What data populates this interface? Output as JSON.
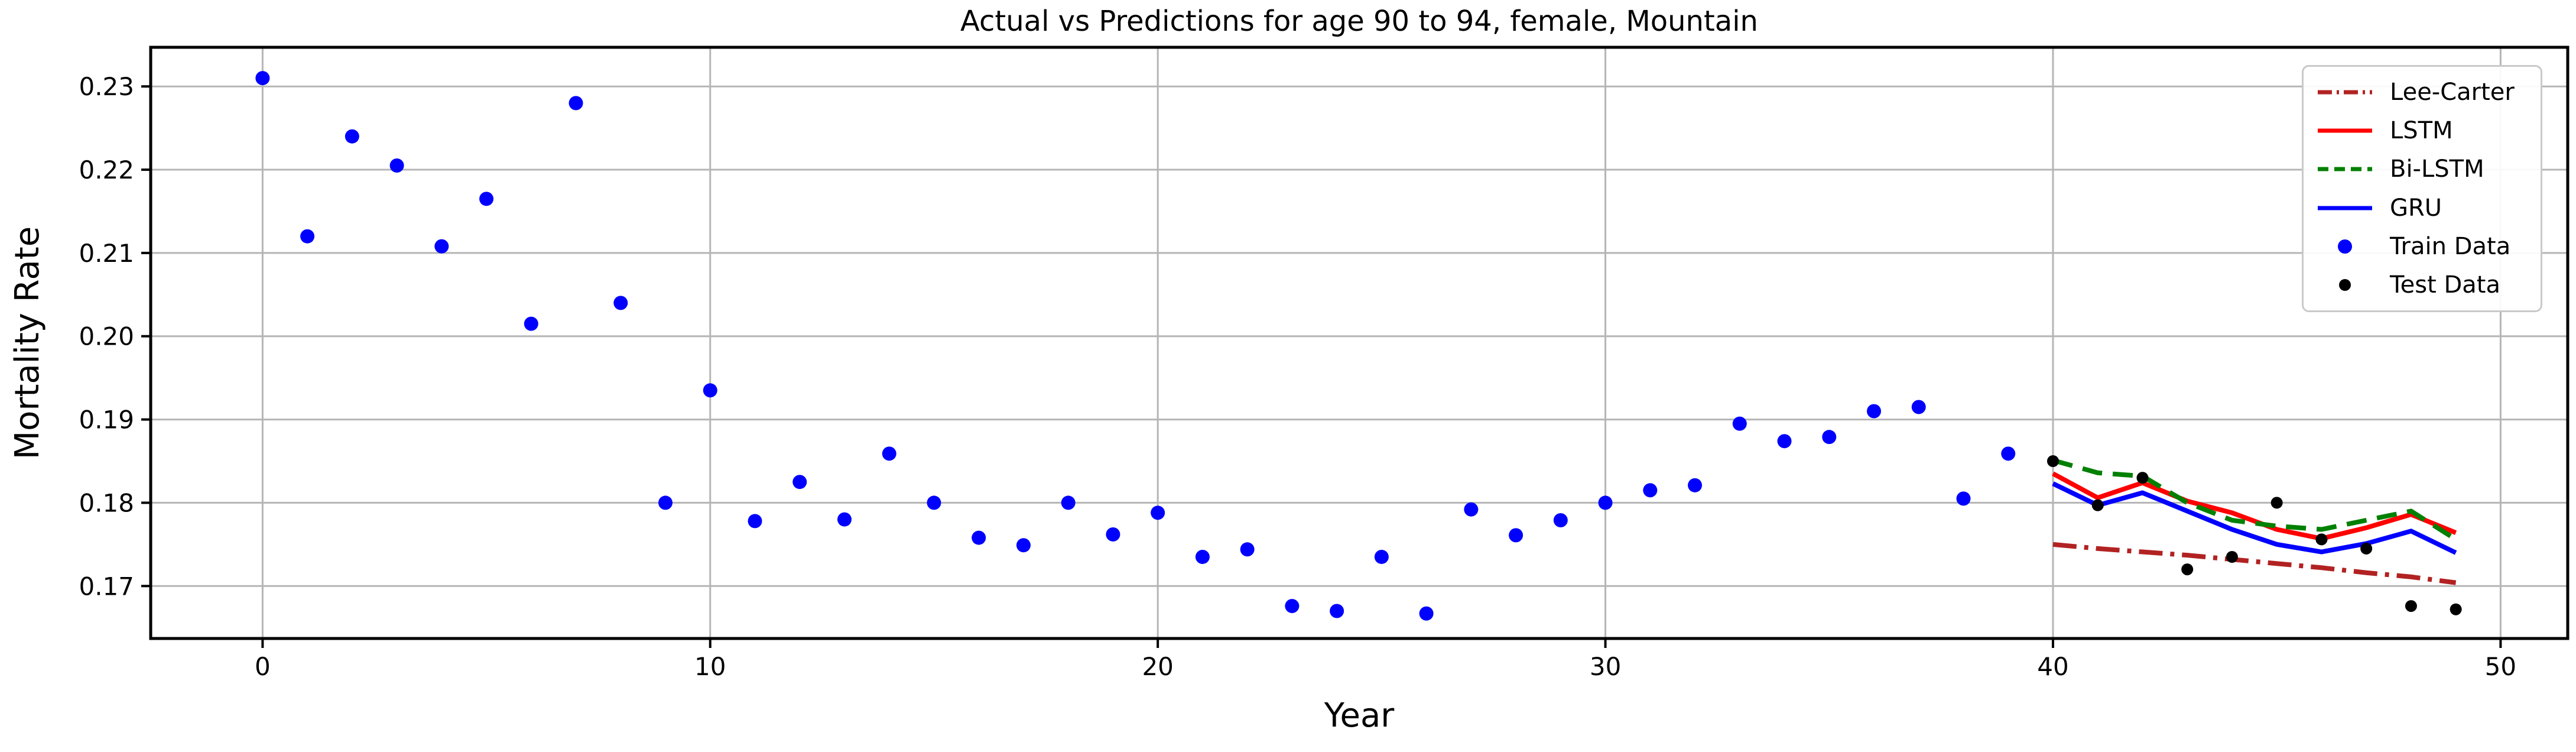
{
  "figure": {
    "background": "#ffffff"
  },
  "chart_data": {
    "type": "scatter",
    "title": "Actual vs Predictions for age 90 to 94, female, Mountain",
    "xlabel": "Year",
    "ylabel": "Mortality Rate",
    "xlim": [
      -2.5,
      51.5
    ],
    "ylim": [
      0.1637,
      0.2347
    ],
    "xtick_labels": [
      "0",
      "10",
      "20",
      "30",
      "40",
      "50"
    ],
    "ytick_labels": [
      "0.17",
      "0.18",
      "0.19",
      "0.20",
      "0.21",
      "0.22",
      "0.23"
    ],
    "grid": true,
    "grid_color": "#b5b5b5",
    "axis_color": "#000000",
    "legend_position": "upper right",
    "series": [
      {
        "name": "Lee-Carter",
        "type": "line",
        "style": "dashdot",
        "color": "#b22222",
        "x": [
          40,
          41,
          42,
          43,
          44,
          45,
          46,
          47,
          48,
          49
        ],
        "y": [
          0.175,
          0.1745,
          0.1741,
          0.1737,
          0.1732,
          0.1727,
          0.1722,
          0.1716,
          0.1711,
          0.1704
        ]
      },
      {
        "name": "LSTM",
        "type": "line",
        "style": "solid",
        "color": "#ff0000",
        "x": [
          40,
          41,
          42,
          43,
          44,
          45,
          46,
          47,
          48,
          49
        ],
        "y": [
          0.1835,
          0.1806,
          0.1824,
          0.1802,
          0.1788,
          0.1768,
          0.1757,
          0.177,
          0.1786,
          0.1764
        ]
      },
      {
        "name": "Bi-LSTM",
        "type": "line",
        "style": "dashed",
        "color": "#008000",
        "x": [
          40,
          41,
          42,
          43,
          44,
          45,
          46,
          47,
          48,
          49
        ],
        "y": [
          0.1851,
          0.1836,
          0.1832,
          0.18,
          0.1779,
          0.1772,
          0.1768,
          0.1779,
          0.179,
          0.1756
        ]
      },
      {
        "name": "GRU",
        "type": "line",
        "style": "solid",
        "color": "#0000ff",
        "x": [
          40,
          41,
          42,
          43,
          44,
          45,
          46,
          47,
          48,
          49
        ],
        "y": [
          0.1823,
          0.1797,
          0.1812,
          0.179,
          0.1768,
          0.175,
          0.1741,
          0.1751,
          0.1766,
          0.174
        ]
      },
      {
        "name": "Train Data",
        "type": "scatter",
        "color": "#0000ff",
        "marker_radius": 12,
        "x": [
          0,
          1,
          2,
          3,
          4,
          5,
          6,
          7,
          8,
          9,
          10,
          11,
          12,
          13,
          14,
          15,
          16,
          17,
          18,
          19,
          20,
          21,
          22,
          23,
          24,
          25,
          26,
          27,
          28,
          29,
          30,
          31,
          32,
          33,
          34,
          35,
          36,
          37,
          38,
          39
        ],
        "y": [
          0.231,
          0.212,
          0.224,
          0.2205,
          0.2108,
          0.2165,
          0.2015,
          0.228,
          0.204,
          0.18,
          0.1935,
          0.1778,
          0.1825,
          0.178,
          0.1859,
          0.18,
          0.1758,
          0.1749,
          0.18,
          0.1762,
          0.1788,
          0.1735,
          0.1744,
          0.1676,
          0.167,
          0.1735,
          0.1667,
          0.1792,
          0.1761,
          0.1779,
          0.18,
          0.1815,
          0.1821,
          0.1895,
          0.1874,
          0.1879,
          0.191,
          0.1915,
          0.1805,
          0.1859
        ]
      },
      {
        "name": "Test Data",
        "type": "scatter",
        "color": "#000000",
        "marker_radius": 10,
        "x": [
          40,
          41,
          42,
          43,
          44,
          45,
          46,
          47,
          48,
          49
        ],
        "y": [
          0.185,
          0.1797,
          0.183,
          0.172,
          0.1735,
          0.18,
          0.1756,
          0.1745,
          0.1676,
          0.1672
        ]
      }
    ]
  }
}
